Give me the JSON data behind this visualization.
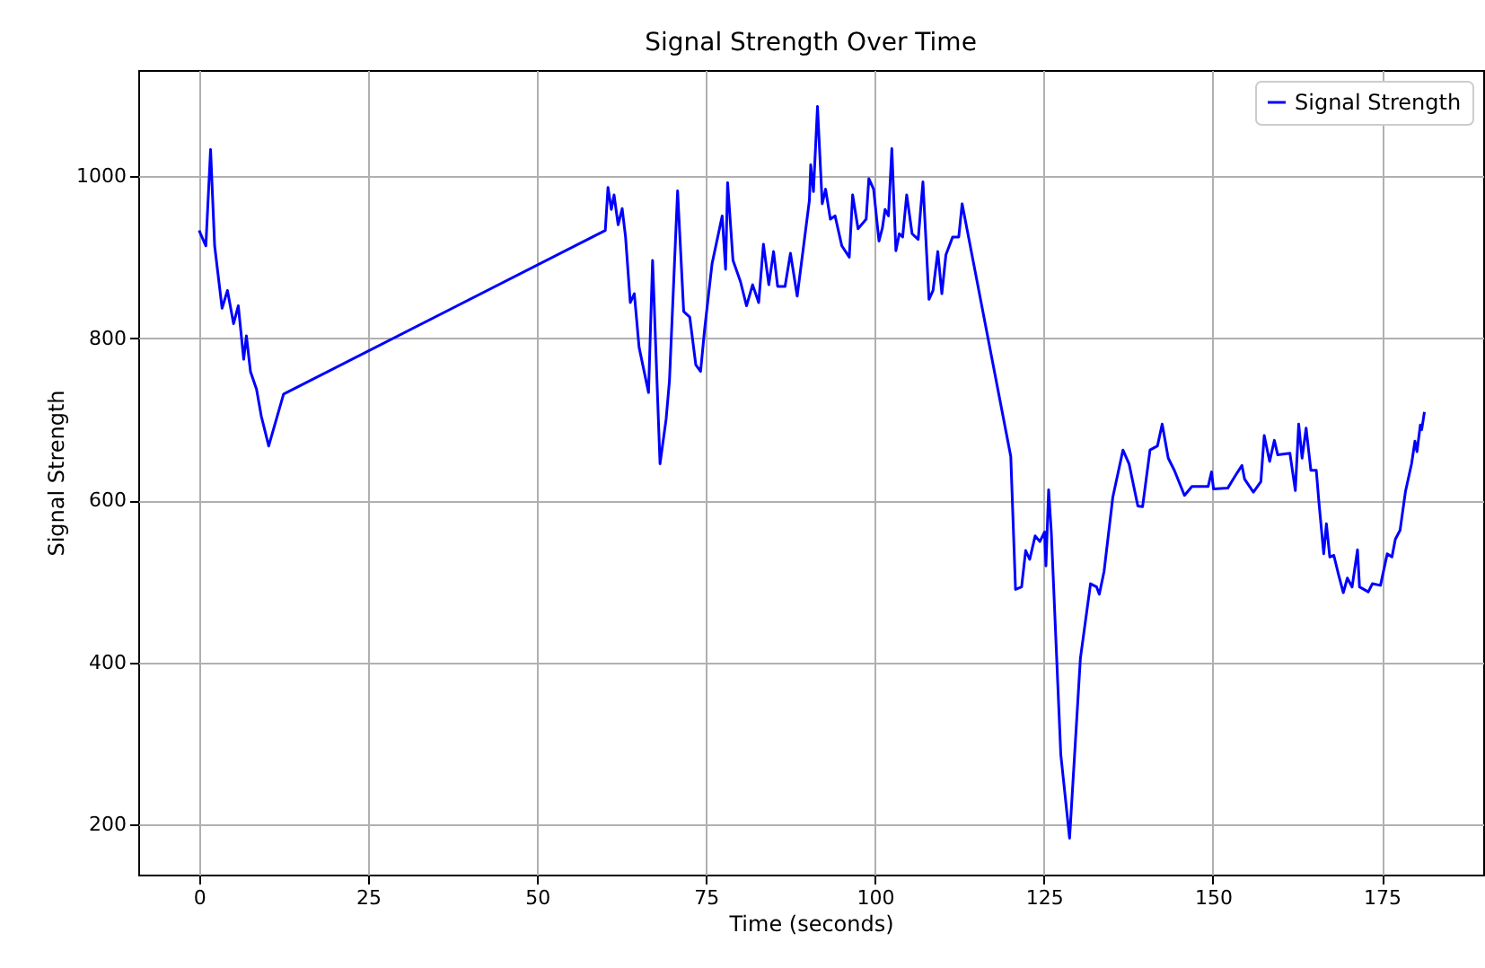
{
  "chart_data": {
    "type": "line",
    "title": "Signal Strength Over Time",
    "xlabel": "Time (seconds)",
    "ylabel": "Signal Strength",
    "xlim": [
      -9,
      190
    ],
    "ylim": [
      138,
      1131
    ],
    "xticks": [
      0,
      25,
      50,
      75,
      100,
      125,
      150,
      175
    ],
    "yticks": [
      200,
      400,
      600,
      800,
      1000
    ],
    "grid": true,
    "legend": "top right",
    "series": [
      {
        "name": "Signal Strength",
        "color": "#0000ff",
        "x": [
          0,
          1.0,
          1.7,
          2.3,
          3.4,
          4.2,
          5.1,
          5.8,
          6.6,
          7.0,
          7.6,
          8.5,
          9.2,
          10.3,
          12.5,
          60.1,
          60.5,
          61.0,
          61.4,
          62.0,
          62.6,
          63.1,
          63.8,
          64.4,
          65.1,
          66.5,
          67.1,
          68.2,
          69.1,
          69.6,
          70.8,
          71.7,
          72.6,
          73.5,
          74.2,
          74.8,
          75.9,
          77.4,
          77.9,
          78.2,
          79.0,
          80.1,
          81.0,
          81.9,
          82.8,
          83.5,
          84.3,
          85.0,
          85.6,
          86.7,
          87.5,
          88.5,
          90.3,
          90.5,
          90.9,
          91.5,
          92.2,
          92.7,
          93.4,
          94.1,
          95.1,
          96.2,
          96.7,
          97.5,
          98.7,
          99.1,
          99.8,
          100.6,
          101.1,
          101.5,
          102.0,
          102.5,
          103.1,
          103.6,
          104.1,
          104.7,
          105.5,
          106.4,
          107.1,
          108.0,
          108.6,
          109.3,
          109.9,
          110.5,
          111.5,
          112.4,
          112.9,
          120.1,
          120.8,
          121.7,
          122.3,
          122.9,
          123.7,
          124.4,
          125.1,
          125.3,
          125.7,
          126.1,
          127.5,
          128.8,
          130.4,
          131.9,
          132.8,
          133.2,
          133.9,
          135.2,
          136.7,
          137.6,
          138.9,
          139.6,
          140.7,
          141.8,
          142.5,
          143.4,
          144.3,
          145.8,
          146.9,
          149.3,
          149.8,
          150.1,
          152.2,
          153.3,
          154.3,
          154.7,
          156.0,
          157.1,
          157.6,
          158.4,
          159.1,
          159.6,
          161.4,
          162.2,
          162.7,
          163.2,
          163.8,
          164.5,
          165.3,
          165.7,
          166.4,
          166.8,
          167.3,
          167.9,
          168.6,
          169.3,
          169.9,
          170.6,
          171.4,
          171.7,
          173.0,
          173.6,
          174.8,
          175.8,
          176.5,
          177.0,
          177.7,
          178.5,
          179.4,
          179.9,
          180.2,
          180.7,
          180.9,
          181.3
        ],
        "values": [
          933,
          914,
          1033,
          914,
          837,
          859,
          818,
          840,
          774,
          803,
          759,
          737,
          704,
          667,
          731,
          933,
          986,
          959,
          977,
          940,
          960,
          925,
          844,
          855,
          789,
          733,
          896,
          645,
          700,
          748,
          982,
          833,
          826,
          767,
          759,
          811,
          892,
          951,
          885,
          992,
          896,
          870,
          840,
          866,
          844,
          916,
          866,
          907,
          864,
          864,
          905,
          852,
          970,
          1014,
          981,
          1086,
          966,
          984,
          947,
          951,
          914,
          900,
          977,
          935,
          947,
          997,
          984,
          920,
          936,
          959,
          951,
          1034,
          908,
          929,
          925,
          977,
          929,
          922,
          993,
          848,
          859,
          907,
          855,
          903,
          925,
          925,
          966,
          654,
          490,
          493,
          538,
          527,
          556,
          549,
          561,
          519,
          613,
          560,
          286,
          183,
          405,
          497,
          493,
          484,
          512,
          604,
          662,
          645,
          593,
          592,
          662,
          667,
          694,
          652,
          637,
          606,
          617,
          617,
          635,
          614,
          615,
          630,
          643,
          626,
          610,
          623,
          680,
          648,
          674,
          656,
          658,
          612,
          694,
          652,
          689,
          637,
          637,
          597,
          534,
          571,
          530,
          532,
          508,
          486,
          504,
          493,
          539,
          493,
          487,
          497,
          495,
          534,
          530,
          552,
          563,
          611,
          645,
          673,
          660,
          693,
          687,
          709
        ]
      }
    ]
  }
}
